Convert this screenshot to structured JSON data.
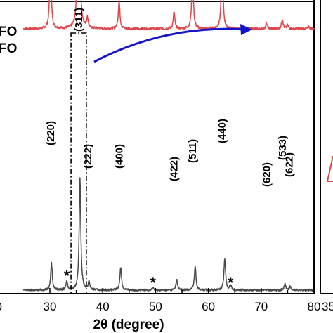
{
  "chart_data": {
    "type": "line",
    "xlabel": "2θ (degree)",
    "xlim": [
      25,
      80
    ],
    "xticks": [
      30,
      40,
      50,
      60,
      70,
      80
    ],
    "legend_fragments": [
      "FO",
      "FO"
    ],
    "second_panel_tick": "35",
    "series": [
      {
        "color": "#e0474c",
        "offset": 0.62,
        "baseline_noise": 0.006,
        "peaks": [
          {
            "x": 30.1,
            "h": 0.167
          },
          {
            "x": 35.45,
            "h": 0.54
          },
          {
            "x": 37.1,
            "h": 0.023
          },
          {
            "x": 43.1,
            "h": 0.067
          },
          {
            "x": 53.5,
            "h": 0.04
          },
          {
            "x": 57.0,
            "h": 0.135
          },
          {
            "x": 62.6,
            "h": 0.177
          },
          {
            "x": 71.0,
            "h": 0.012
          },
          {
            "x": 74.0,
            "h": 0.023
          },
          {
            "x": 75.0,
            "h": 0.008
          },
          {
            "x": 79.0,
            "h": 0.005
          }
        ]
      },
      {
        "color": "#4a4a4a",
        "offset": 0.0,
        "baseline_noise": 0.005,
        "peaks": [
          {
            "x": 30.3,
            "h": 0.064
          },
          {
            "x": 33.2,
            "h": 0.02
          },
          {
            "x": 35.7,
            "h": 0.267
          },
          {
            "x": 37.4,
            "h": 0.02
          },
          {
            "x": 43.4,
            "h": 0.055
          },
          {
            "x": 49.5,
            "h": 0.006
          },
          {
            "x": 54.0,
            "h": 0.025
          },
          {
            "x": 57.5,
            "h": 0.058
          },
          {
            "x": 63.1,
            "h": 0.076
          },
          {
            "x": 64.2,
            "h": 0.012
          },
          {
            "x": 74.5,
            "h": 0.015
          },
          {
            "x": 75.5,
            "h": 0.008
          }
        ]
      }
    ],
    "peak_labels": [
      {
        "text": "(220)",
        "x": 30.1
      },
      {
        "text": "(311)",
        "x": 35.45
      },
      {
        "text": "(222)",
        "x": 37.2
      },
      {
        "text": "(400)",
        "x": 43.1
      },
      {
        "text": "(422)",
        "x": 53.5
      },
      {
        "text": "(511)",
        "x": 57.0
      },
      {
        "text": "(440)",
        "x": 62.6
      },
      {
        "text": "(620)",
        "x": 71.0
      },
      {
        "text": "(533)",
        "x": 74.0
      },
      {
        "text": "(622)",
        "x": 75.3
      }
    ],
    "impurity_marks": [
      {
        "text": "*",
        "x": 33.2
      },
      {
        "text": "*",
        "x": 49.5
      },
      {
        "text": "*",
        "x": 64.2
      }
    ],
    "highlight_range": [
      34.0,
      36.9
    ]
  }
}
